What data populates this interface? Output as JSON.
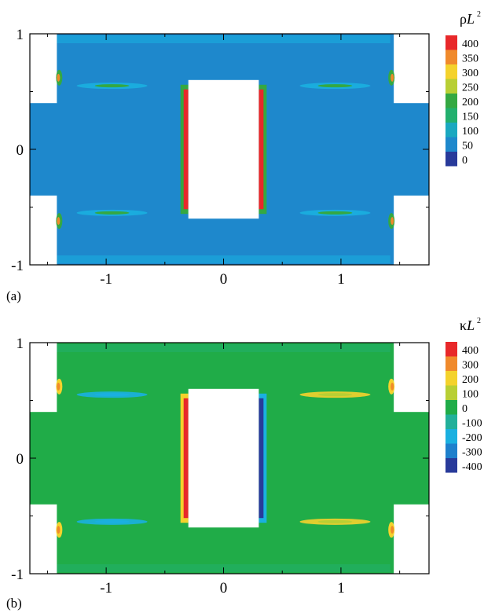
{
  "chart_data": [
    {
      "type": "heatmap",
      "panel_label": "(a)",
      "colorbar_title": "ρL",
      "colorbar_superscript": "2",
      "levels": [
        400,
        350,
        300,
        250,
        200,
        150,
        100,
        50,
        0
      ],
      "level_colors": [
        "#e8282a",
        "#f08a2c",
        "#f4d22c",
        "#b8cf34",
        "#34a842",
        "#22b06e",
        "#1aa8c0",
        "#1e88cc",
        "#283a9a"
      ],
      "background_color": "#1e88cc",
      "xlim": [
        -1.65,
        1.75
      ],
      "ylim": [
        -1,
        1
      ],
      "xticks": [
        "-1",
        "0",
        "1"
      ],
      "yticks": [
        "1",
        "0",
        "-1"
      ],
      "hot_band_colors": [
        "#e8282a",
        "#f4d22c",
        "#34a842"
      ]
    },
    {
      "type": "heatmap",
      "panel_label": "(b)",
      "colorbar_title": "κL",
      "colorbar_superscript": "2",
      "levels": [
        400,
        300,
        200,
        100,
        0,
        -100,
        -200,
        -300,
        -400
      ],
      "level_colors": [
        "#e8282a",
        "#f08a2c",
        "#f4d22c",
        "#b8cf34",
        "#20ac48",
        "#22b09a",
        "#1ab0e0",
        "#1e80cc",
        "#283a9a"
      ],
      "background_color": "#20ac48",
      "xlim": [
        -1.65,
        1.75
      ],
      "ylim": [
        -1,
        1
      ],
      "xticks": [
        "-1",
        "0",
        "1"
      ],
      "yticks": [
        "1",
        "0",
        "-1"
      ],
      "hot_band_colors": [
        "#e8282a",
        "#283a9a",
        "#f4d22c"
      ]
    }
  ]
}
